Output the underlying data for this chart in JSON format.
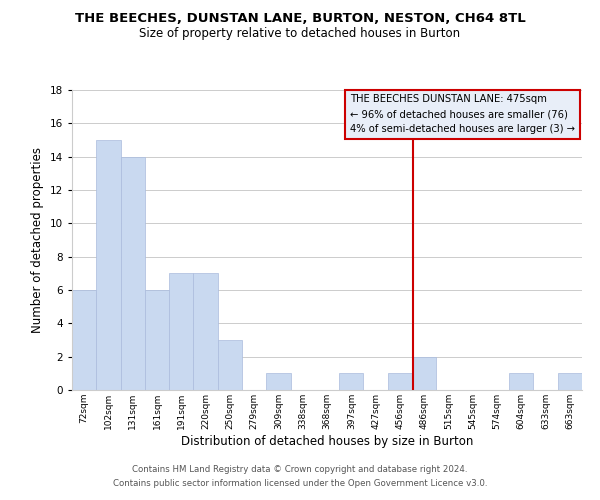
{
  "title": "THE BEECHES, DUNSTAN LANE, BURTON, NESTON, CH64 8TL",
  "subtitle": "Size of property relative to detached houses in Burton",
  "xlabel": "Distribution of detached houses by size in Burton",
  "ylabel": "Number of detached properties",
  "bin_labels": [
    "72sqm",
    "102sqm",
    "131sqm",
    "161sqm",
    "191sqm",
    "220sqm",
    "250sqm",
    "279sqm",
    "309sqm",
    "338sqm",
    "368sqm",
    "397sqm",
    "427sqm",
    "456sqm",
    "486sqm",
    "515sqm",
    "545sqm",
    "574sqm",
    "604sqm",
    "633sqm",
    "663sqm"
  ],
  "bar_heights": [
    6,
    15,
    14,
    6,
    7,
    7,
    3,
    0,
    1,
    0,
    0,
    1,
    0,
    1,
    2,
    0,
    0,
    0,
    1,
    0,
    1
  ],
  "bar_color": "#c9d9f0",
  "bar_edge_color": "#aabbdd",
  "vline_x_index": 13.55,
  "vline_color": "#cc0000",
  "annotation_title": "THE BEECHES DUNSTAN LANE: 475sqm",
  "annotation_line1": "← 96% of detached houses are smaller (76)",
  "annotation_line2": "4% of semi-detached houses are larger (3) →",
  "annotation_box_facecolor": "#e8eef8",
  "annotation_box_edge": "#cc0000",
  "footer_line1": "Contains HM Land Registry data © Crown copyright and database right 2024.",
  "footer_line2": "Contains public sector information licensed under the Open Government Licence v3.0.",
  "ylim": [
    0,
    18
  ],
  "yticks": [
    0,
    2,
    4,
    6,
    8,
    10,
    12,
    14,
    16,
    18
  ],
  "background_color": "#ffffff",
  "grid_color": "#cccccc"
}
